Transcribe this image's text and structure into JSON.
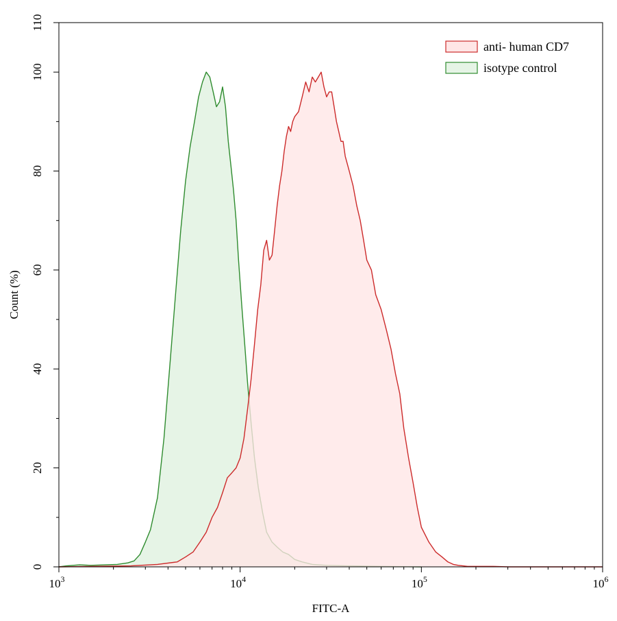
{
  "chart_data": {
    "type": "area",
    "xlabel": "FITC-A",
    "ylabel": "Count (%)",
    "xscale": "log",
    "xlim": [
      1000,
      1000000
    ],
    "ylim": [
      0,
      110
    ],
    "grid": false,
    "legend_position": "top-right",
    "x_ticks": [
      {
        "value": 1000,
        "base": "10",
        "exp": "3"
      },
      {
        "value": 10000,
        "base": "10",
        "exp": "4"
      },
      {
        "value": 100000,
        "base": "10",
        "exp": "5"
      },
      {
        "value": 1000000,
        "base": "10",
        "exp": "6"
      }
    ],
    "y_ticks": [
      0,
      20,
      40,
      60,
      80,
      100,
      110
    ],
    "series": [
      {
        "name": "isotype control",
        "line_color": "#2e8b2e",
        "fill_color": "#e6f4e6",
        "x": [
          1000,
          1100,
          1300,
          1500,
          1800,
          2100,
          2400,
          2600,
          2800,
          3000,
          3200,
          3500,
          3800,
          4100,
          4400,
          4700,
          5000,
          5300,
          5600,
          5900,
          6200,
          6500,
          6800,
          7100,
          7400,
          7700,
          8000,
          8300,
          8600,
          8900,
          9200,
          9500,
          9800,
          10200,
          10600,
          11000,
          11500,
          12000,
          12600,
          13300,
          14000,
          15000,
          16000,
          17200,
          18500,
          20000,
          22000,
          25000,
          30000,
          40000,
          60000,
          100000
        ],
        "y": [
          0,
          0.2,
          0.4,
          0.3,
          0.4,
          0.5,
          0.8,
          1.2,
          2.5,
          5,
          7.5,
          14,
          26,
          41,
          55,
          68,
          78,
          85,
          90,
          95,
          98,
          100,
          99,
          96,
          93,
          94,
          97,
          93,
          86,
          81,
          76,
          70,
          62,
          53,
          45,
          37,
          29,
          22,
          16,
          11,
          7,
          5,
          4,
          3,
          2.5,
          1.5,
          1,
          0.5,
          0.3,
          0.2,
          0.1,
          0
        ]
      },
      {
        "name": "anti- human CD7",
        "line_color": "#cc2a2a",
        "fill_color": "#ffe6e6",
        "x": [
          1000,
          2500,
          3500,
          4500,
          5000,
          5500,
          6000,
          6500,
          7000,
          7500,
          8000,
          8500,
          9000,
          9500,
          10000,
          10500,
          11000,
          11500,
          12000,
          12500,
          13000,
          13500,
          14000,
          14500,
          15000,
          15500,
          16000,
          16500,
          17000,
          17500,
          18000,
          18500,
          19000,
          19500,
          20000,
          21000,
          22000,
          23000,
          24000,
          25000,
          26000,
          27000,
          28000,
          29000,
          30000,
          31000,
          32000,
          33000,
          34000,
          35000,
          36000,
          37000,
          38000,
          40000,
          42000,
          44000,
          46000,
          48000,
          50000,
          53000,
          56000,
          60000,
          64000,
          68000,
          72000,
          76000,
          80000,
          85000,
          90000,
          95000,
          100000,
          110000,
          120000,
          130000,
          140000,
          150000,
          160000,
          170000,
          180000,
          190000,
          200000,
          220000,
          250000,
          300000,
          400000,
          600000,
          1000000
        ],
        "y": [
          0,
          0.2,
          0.5,
          1,
          2,
          3,
          5,
          7,
          10,
          12,
          15,
          18,
          19,
          20,
          22,
          26,
          32,
          38,
          45,
          52,
          57,
          64,
          66,
          62,
          63,
          68,
          73,
          77,
          80,
          84,
          87,
          89,
          88,
          90,
          91,
          92,
          95,
          98,
          96,
          99,
          98,
          99,
          100,
          97,
          95,
          96,
          96,
          93,
          90,
          88,
          86,
          86,
          83,
          80,
          77,
          73,
          70,
          66,
          62,
          60,
          55,
          52,
          48,
          44,
          39,
          35,
          28,
          22,
          17,
          12,
          8,
          5,
          3,
          2,
          1,
          0.5,
          0.3,
          0.2,
          0.1,
          0.1,
          0.1,
          0.1,
          0.1,
          0,
          0,
          0,
          0
        ]
      }
    ]
  }
}
